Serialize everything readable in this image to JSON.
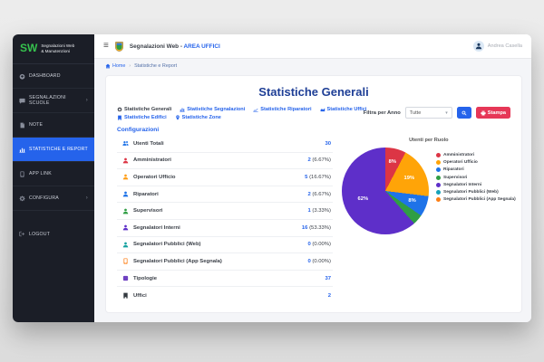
{
  "colors": {
    "accent": "#2563eb",
    "danger": "#e63757",
    "sidebar_bg": "#1b1e27",
    "brand_green": "#36c24e",
    "title_navy": "#1f3f96"
  },
  "sidebar": {
    "brand": {
      "initials": "SW",
      "name_line1": "Segnalazioni Web",
      "name_line2": "& Manutenzioni"
    },
    "items": [
      {
        "label": "DASHBOARD",
        "icon": "dashboard-icon",
        "active": false,
        "chevron": false
      },
      {
        "label": "SEGNALAZIONI SCUOLE",
        "icon": "comment-icon",
        "active": false,
        "chevron": true
      },
      {
        "label": "NOTE",
        "icon": "note-icon",
        "active": false,
        "chevron": false
      },
      {
        "label": "STATISTICHE E REPORT",
        "icon": "bar-chart-icon",
        "active": true,
        "chevron": false
      },
      {
        "label": "APP LINK",
        "icon": "phone-icon",
        "active": false,
        "chevron": false
      },
      {
        "label": "CONFIGURA",
        "icon": "gear-icon",
        "active": false,
        "chevron": true
      },
      {
        "label": "LOGOUT",
        "icon": "logout-icon",
        "active": false,
        "chevron": false
      }
    ],
    "chevron_glyph": "›"
  },
  "header": {
    "title_prefix": "Segnalazioni Web - ",
    "title_area": "AREA UFFICI",
    "user_name": "Andrea Casella"
  },
  "breadcrumb": {
    "home": "Home",
    "separator": "›",
    "current": "Statistiche e Report"
  },
  "page": {
    "title": "Statistiche Generali",
    "tabs": [
      {
        "label": "Statistiche Generali",
        "icon": "gear-icon",
        "active": true
      },
      {
        "label": "Statistiche Segnalazioni",
        "icon": "bar-chart-icon",
        "active": false
      },
      {
        "label": "Statistiche Riparatori",
        "icon": "line-chart-icon",
        "active": false
      },
      {
        "label": "Statistiche Uffici",
        "icon": "area-chart-icon",
        "active": false
      },
      {
        "label": "Statistiche Edifici",
        "icon": "building-icon",
        "active": false
      },
      {
        "label": "Statistiche Zone",
        "icon": "pin-icon",
        "active": false
      }
    ],
    "filter": {
      "label": "Filtra per Anno",
      "select_value": "Tutte",
      "search_icon": "search-icon",
      "print_label": "Stampa",
      "print_icon": "printer-icon"
    }
  },
  "stats": {
    "section_title": "Configurazioni",
    "rows": [
      {
        "label": "Utenti Totali",
        "value": "30",
        "percent": "",
        "color": "#1e73e8",
        "icon": "users-icon"
      },
      {
        "label": "Amministratori",
        "value": "2",
        "percent": " (6.67%)",
        "color": "#dc3545",
        "icon": "person-icon"
      },
      {
        "label": "Operatori Ufficio",
        "value": "5",
        "percent": " (16.67%)",
        "color": "#ff9f1a",
        "icon": "person-icon"
      },
      {
        "label": "Riparatori",
        "value": "2",
        "percent": " (6.67%)",
        "color": "#1e73e8",
        "icon": "person-icon"
      },
      {
        "label": "Supervisori",
        "value": "1",
        "percent": " (3.33%)",
        "color": "#2f9e44",
        "icon": "person-icon"
      },
      {
        "label": "Segnalatori Interni",
        "value": "16",
        "percent": " (53.33%)",
        "color": "#5e2fc9",
        "icon": "person-icon"
      },
      {
        "label": "Segnalatori Pubblici (Web)",
        "value": "0",
        "percent": " (0.00%)",
        "color": "#17a2a0",
        "icon": "person-icon"
      },
      {
        "label": "Segnalatori Pubblici (App Segnala)",
        "value": "0",
        "percent": " (0.00%)",
        "color": "#fd7e14",
        "icon": "phone-icon"
      },
      {
        "label": "Tipologie",
        "value": "37",
        "percent": "",
        "color": "#6f42c1",
        "icon": "square-icon"
      },
      {
        "label": "Uffici",
        "value": "2",
        "percent": "",
        "color": "#343a40",
        "icon": "building-icon"
      }
    ]
  },
  "chart_data": {
    "type": "pie",
    "title": "Utenti per Ruolo",
    "slices": [
      {
        "label": "Amministratori",
        "value": 2,
        "percent_label": "8%",
        "color": "#dc3545",
        "label_visible": true,
        "label_r": 0.68
      },
      {
        "label": "Operatori Ufficio",
        "value": 5,
        "percent_label": "19%",
        "color": "#ffa408",
        "label_visible": true,
        "label_r": 0.62
      },
      {
        "label": "Riparatori",
        "value": 2,
        "percent_label": "8%",
        "color": "#1e73e8",
        "label_visible": true,
        "label_r": 0.66
      },
      {
        "label": "Supervisori",
        "value": 1,
        "percent_label": "4%",
        "color": "#2f9e44",
        "label_visible": false,
        "label_r": 0.7
      },
      {
        "label": "Segnalatori Interni",
        "value": 16,
        "percent_label": "62%",
        "color": "#5e2fc9",
        "label_visible": true,
        "label_r": 0.55
      }
    ],
    "legend": [
      {
        "label": "Amministratori",
        "color": "#dc3545"
      },
      {
        "label": "Operatori Ufficio",
        "color": "#ffa408"
      },
      {
        "label": "Riparatori",
        "color": "#1e73e8"
      },
      {
        "label": "Supervisori",
        "color": "#2f9e44"
      },
      {
        "label": "Segnalatori Interni",
        "color": "#5e2fc9"
      },
      {
        "label": "Segnalatori Pubblici (Web)",
        "color": "#17a2b8"
      },
      {
        "label": "Segnalatori Pubblici (App Segnala)",
        "color": "#fd7e14"
      }
    ],
    "legend_position": "right"
  }
}
